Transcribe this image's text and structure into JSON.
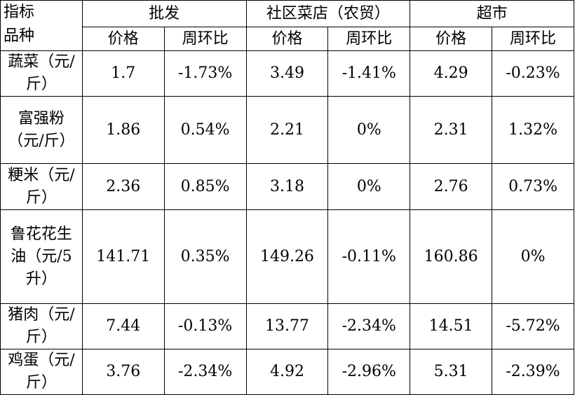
{
  "table": {
    "corner": [
      "指标",
      "品种"
    ],
    "groups": [
      "批发",
      "社区菜店（农贸）",
      "超市"
    ],
    "subheaders": [
      "价格",
      "周环比",
      "价格",
      "周环比",
      "价格",
      "周环比"
    ],
    "rows": [
      [
        "蔬菜（元/斤）",
        "1.7",
        "-1.73%",
        "3.49",
        "-1.41%",
        "4.29",
        "-0.23%"
      ],
      [
        "富强粉（元/斤）",
        "1.86",
        "0.54%",
        "2.21",
        "0%",
        "2.31",
        "1.32%"
      ],
      [
        "粳米（元/斤）",
        "2.36",
        "0.85%",
        "3.18",
        "0%",
        "2.76",
        "0.73%"
      ],
      [
        "鲁花花生油（元/5升）",
        "141.71",
        "0.35%",
        "149.26",
        "-0.11%",
        "160.86",
        "0%"
      ],
      [
        "猪肉（元/斤）",
        "7.44",
        "-0.13%",
        "13.77",
        "-2.34%",
        "14.51",
        "-5.72%"
      ],
      [
        "鸡蛋（元/斤）",
        "3.76",
        "-2.34%",
        "4.92",
        "-2.96%",
        "5.31",
        "-2.39%"
      ]
    ]
  }
}
